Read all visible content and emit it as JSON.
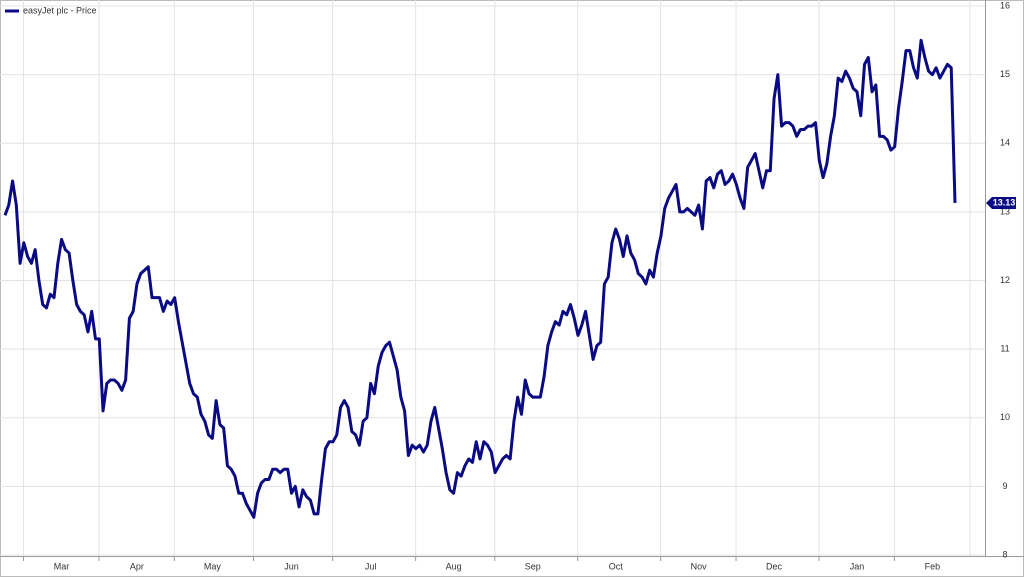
{
  "chart_data": {
    "type": "line",
    "ylim": [
      8,
      16
    ],
    "yticks": [
      8,
      9,
      10,
      11,
      12,
      13,
      14,
      15,
      16
    ],
    "grid": true,
    "legend": "top-left",
    "categories": [
      null,
      null,
      null,
      null,
      null,
      null,
      null,
      null,
      null,
      null,
      null,
      null,
      null,
      null,
      null,
      "Mar",
      null,
      null,
      null,
      null,
      null,
      null,
      null,
      null,
      null,
      null,
      null,
      null,
      null,
      null,
      null,
      null,
      null,
      null,
      null,
      "Apr",
      null,
      null,
      null,
      null,
      null,
      null,
      null,
      null,
      null,
      null,
      null,
      null,
      null,
      null,
      null,
      null,
      null,
      null,
      null,
      "May",
      null,
      null,
      null,
      null,
      null,
      null,
      null,
      null,
      null,
      null,
      null,
      null,
      null,
      null,
      null,
      null,
      null,
      null,
      null,
      null,
      "Jun",
      null,
      null,
      null,
      null,
      null,
      null,
      null,
      null,
      null,
      null,
      null,
      null,
      null,
      null,
      null,
      null,
      null,
      null,
      null,
      null,
      "Jul",
      null,
      null,
      null,
      null,
      null,
      null,
      null,
      null,
      null,
      null,
      null,
      null,
      null,
      null,
      null,
      null,
      null,
      null,
      null,
      null,
      null,
      "Aug",
      null,
      null,
      null,
      null,
      null,
      null,
      null,
      null,
      null,
      null,
      null,
      null,
      null,
      null,
      null,
      null,
      null,
      null,
      null,
      null,
      "Sep",
      null,
      null,
      null,
      null,
      null,
      null,
      null,
      null,
      null,
      null,
      null,
      null,
      null,
      null,
      null,
      null,
      null,
      null,
      null,
      null,
      null,
      "Oct",
      null,
      null,
      null,
      null,
      null,
      null,
      null,
      null,
      null,
      null,
      null,
      null,
      null,
      null,
      null,
      null,
      null,
      null,
      null,
      null,
      null,
      "Nov",
      null,
      null,
      null,
      null,
      null,
      null,
      null,
      null,
      null,
      null,
      null,
      null,
      null,
      null,
      null,
      null,
      null,
      null,
      null,
      "Dec",
      null,
      null,
      null,
      null,
      null,
      null,
      null,
      null,
      null,
      null,
      null,
      null,
      null,
      null,
      null,
      null,
      null,
      null,
      null,
      null,
      null,
      "Jan",
      null,
      null,
      null,
      null,
      null,
      null,
      null,
      null,
      null,
      null,
      null,
      null,
      null,
      null,
      null,
      null,
      null,
      null,
      null,
      "Feb",
      null,
      null,
      null,
      null,
      null,
      null
    ],
    "series": [
      {
        "name": "easyJet plc - Price",
        "color": "#0a0a84",
        "values": [
          12.95,
          13.1,
          13.45,
          13.1,
          12.25,
          12.55,
          12.35,
          12.25,
          12.45,
          12.0,
          11.65,
          11.6,
          11.8,
          11.75,
          12.25,
          12.6,
          12.45,
          12.4,
          12.0,
          11.65,
          11.55,
          11.5,
          11.25,
          11.55,
          11.15,
          11.15,
          10.1,
          10.5,
          10.55,
          10.55,
          10.5,
          10.4,
          10.55,
          11.45,
          11.55,
          11.95,
          12.1,
          12.15,
          12.2,
          11.75,
          11.75,
          11.75,
          11.55,
          11.7,
          11.65,
          11.75,
          11.4,
          11.1,
          10.8,
          10.5,
          10.35,
          10.3,
          10.05,
          9.95,
          9.75,
          9.7,
          10.25,
          9.9,
          9.85,
          9.3,
          9.25,
          9.15,
          8.9,
          8.9,
          8.75,
          8.65,
          8.55,
          8.9,
          9.05,
          9.1,
          9.1,
          9.25,
          9.25,
          9.2,
          9.25,
          9.25,
          8.9,
          9.0,
          8.7,
          8.95,
          8.85,
          8.8,
          8.6,
          8.6,
          9.1,
          9.55,
          9.65,
          9.65,
          9.75,
          10.15,
          10.25,
          10.15,
          9.8,
          9.75,
          9.6,
          9.95,
          10.0,
          10.5,
          10.35,
          10.75,
          10.95,
          11.05,
          11.1,
          10.9,
          10.7,
          10.3,
          10.1,
          9.45,
          9.6,
          9.55,
          9.6,
          9.5,
          9.6,
          9.95,
          10.15,
          9.85,
          9.55,
          9.2,
          8.95,
          8.9,
          9.2,
          9.15,
          9.3,
          9.4,
          9.35,
          9.65,
          9.4,
          9.65,
          9.6,
          9.5,
          9.2,
          9.3,
          9.4,
          9.45,
          9.4,
          9.95,
          10.3,
          10.05,
          10.55,
          10.35,
          10.3,
          10.3,
          10.3,
          10.6,
          11.05,
          11.25,
          11.4,
          11.35,
          11.55,
          11.5,
          11.65,
          11.45,
          11.2,
          11.35,
          11.55,
          11.2,
          10.85,
          11.05,
          11.1,
          11.95,
          12.05,
          12.55,
          12.75,
          12.6,
          12.35,
          12.65,
          12.4,
          12.3,
          12.1,
          12.05,
          11.95,
          12.15,
          12.05,
          12.4,
          12.65,
          13.05,
          13.2,
          13.3,
          13.4,
          13.0,
          13.0,
          13.05,
          13.0,
          12.95,
          13.1,
          12.75,
          13.45,
          13.5,
          13.35,
          13.55,
          13.6,
          13.4,
          13.45,
          13.55,
          13.4,
          13.2,
          13.05,
          13.65,
          13.75,
          13.85,
          13.6,
          13.35,
          13.6,
          13.6,
          14.65,
          15.0,
          14.25,
          14.3,
          14.3,
          14.25,
          14.1,
          14.2,
          14.2,
          14.25,
          14.25,
          14.3,
          13.75,
          13.5,
          13.7,
          14.1,
          14.4,
          14.95,
          14.9,
          15.05,
          14.95,
          14.8,
          14.75,
          14.4,
          15.15,
          15.25,
          14.75,
          14.85,
          14.1,
          14.1,
          14.05,
          13.9,
          13.95,
          14.5,
          14.9,
          15.35,
          15.35,
          15.1,
          14.95,
          15.5,
          15.25,
          15.05,
          15.0,
          15.1,
          14.95,
          15.05,
          15.15,
          15.1,
          13.13
        ]
      }
    ]
  }
}
